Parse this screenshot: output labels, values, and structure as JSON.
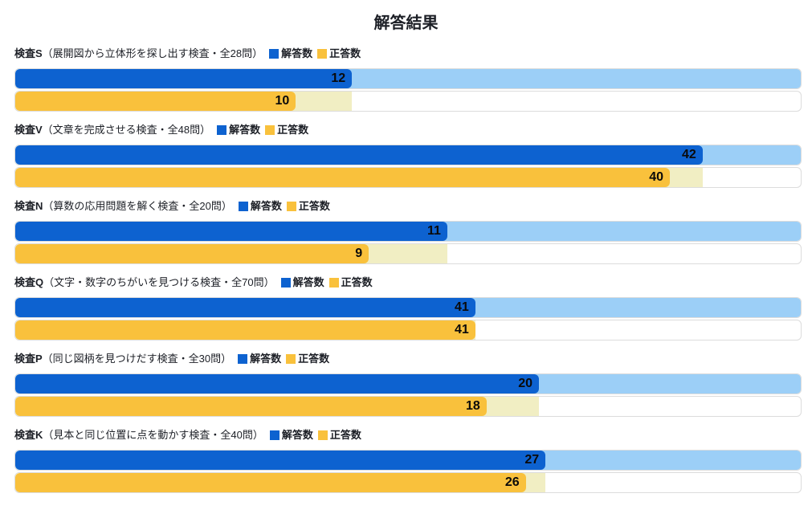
{
  "chart_data": {
    "type": "bar",
    "orientation": "horizontal",
    "title": "解答結果",
    "series_labels": [
      "解答数",
      "正答数"
    ],
    "legend_position": "inline-after-each-group-label",
    "scale_note": "each bar width = value / total_questions of full track width; answered-row track (light blue) spans the full total, correct-row track (cream) spans the answered count",
    "groups": [
      {
        "name": "検査S",
        "detail": "（展開図から立体形を探し出す検査・全28問）",
        "total": 28,
        "answered": 12,
        "correct": 10
      },
      {
        "name": "検査V",
        "detail": "（文章を完成させる検査・全48問）",
        "total": 48,
        "answered": 42,
        "correct": 40
      },
      {
        "name": "検査N",
        "detail": "（算数の応用問題を解く検査・全20問）",
        "total": 20,
        "answered": 11,
        "correct": 9
      },
      {
        "name": "検査Q",
        "detail": "（文字・数字のちがいを見つける検査・全70問）",
        "total": 70,
        "answered": 41,
        "correct": 41
      },
      {
        "name": "検査P",
        "detail": "（同じ図柄を見つけだす検査・全30問）",
        "total": 30,
        "answered": 20,
        "correct": 18
      },
      {
        "name": "検査K",
        "detail": "（見本と同じ位置に点を動かす検査・全40問）",
        "total": 40,
        "answered": 27,
        "correct": 26
      }
    ]
  },
  "colors": {
    "answered_fill": "#0d62d0",
    "answered_track": "#9ccff7",
    "correct_fill": "#f9c13c",
    "correct_track": "#f1eec3",
    "row_border": "#dcdcdc",
    "value_text": "#0a0a0a"
  }
}
